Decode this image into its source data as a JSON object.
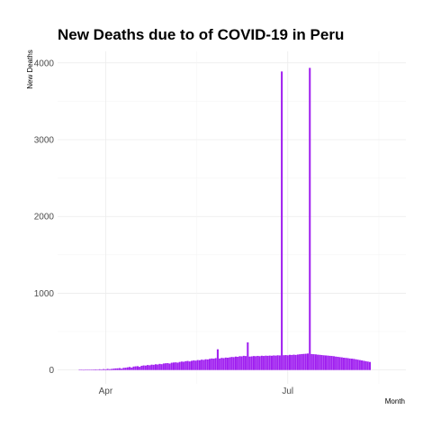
{
  "chart_data": {
    "type": "bar",
    "title": "New Deaths due to of COVID-19 in Peru",
    "xlabel": "Month",
    "ylabel": "New Deaths",
    "ylim": [
      -180,
      4150
    ],
    "yticks": [
      0,
      1000,
      2000,
      3000,
      4000
    ],
    "xticks": [
      {
        "label": "Apr",
        "date": "2020-04-01"
      },
      {
        "label": "Jul",
        "date": "2020-07-01"
      }
    ],
    "xlim": [
      "2020-03-08",
      "2020-08-29"
    ],
    "bar_color": "#a020f0",
    "grid": true,
    "legend": "none",
    "series": [
      {
        "x_start": "2020-03-19",
        "x_end": "2020-08-26",
        "values": [
          3,
          2,
          1,
          3,
          4,
          2,
          5,
          6,
          8,
          4,
          10,
          7,
          12,
          9,
          15,
          11,
          14,
          18,
          21,
          22,
          25,
          18,
          28,
          30,
          35,
          40,
          32,
          45,
          48,
          50,
          42,
          55,
          60,
          58,
          65,
          62,
          70,
          68,
          75,
          72,
          80,
          76,
          85,
          88,
          90,
          84,
          95,
          98,
          100,
          96,
          105,
          110,
          108,
          115,
          118,
          112,
          120,
          125,
          122,
          130,
          128,
          135,
          132,
          140,
          138,
          145,
          150,
          148,
          155,
          270,
          150,
          158,
          155,
          162,
          160,
          165,
          170,
          168,
          175,
          172,
          180,
          178,
          185,
          182,
          360,
          175,
          178,
          182,
          180,
          184,
          180,
          186,
          183,
          187,
          185,
          188,
          186,
          190,
          188,
          192,
          190,
          3888,
          193,
          195,
          192,
          198,
          196,
          200,
          197,
          202,
          205,
          208,
          210,
          212,
          215,
          3935,
          208,
          206,
          204,
          200,
          198,
          195,
          192,
          190,
          188,
          185,
          183,
          180,
          175,
          172,
          168,
          165,
          160,
          158,
          155,
          150,
          148,
          145,
          140,
          135,
          130,
          125,
          120,
          115,
          110,
          105
        ]
      }
    ]
  }
}
